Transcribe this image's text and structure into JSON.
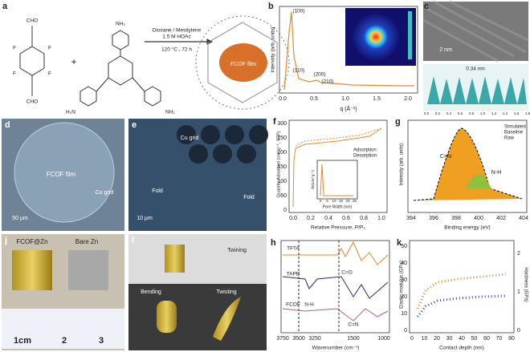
{
  "panels": {
    "a": {
      "label": "a",
      "groups": [
        "CHO",
        "CHO",
        "F",
        "F",
        "F",
        "F",
        "NH₂",
        "H₂N",
        "NH₂"
      ],
      "conditions": [
        "Dioxane / Mesitylene",
        "1.5 M HOAc",
        "120 °C , 72 h"
      ],
      "product": "FCOF film",
      "plus": "+"
    },
    "b": {
      "label": "b",
      "peaks": [
        "(100)",
        "(110)",
        "(200)",
        "(210)"
      ],
      "ylabel": "Intensity (arb. units)",
      "xlabel": "q (Å⁻¹)",
      "xticks": [
        "0.0",
        "0.5",
        "1.0",
        "1.5",
        "2.0"
      ]
    },
    "c": {
      "label": "c",
      "scale": "2 nm",
      "spacing": "0.34 nm",
      "xticks": [
        "0.0",
        "0.2",
        "0.4",
        "0.6",
        "0.8",
        "1.0",
        "1.2",
        "1.4",
        "1.6",
        "1.8"
      ]
    },
    "d": {
      "label": "d",
      "texts": [
        "FCOF film",
        "Cu grid"
      ],
      "scale": "50 µm"
    },
    "e": {
      "label": "e",
      "texts": [
        "Cu grid",
        "Fold",
        "Fold"
      ],
      "scale": "10 µm"
    },
    "f": {
      "label": "f",
      "ylabel": "Quantity Adsorbed (cm³ g⁻¹, STP)",
      "xlabel": "Relative Pressure, P/P₀",
      "yticks": [
        "0",
        "50",
        "100",
        "150",
        "200",
        "250",
        "300"
      ],
      "xticks": [
        "0.0",
        "0.2",
        "0.4",
        "0.6",
        "0.8",
        "1.0"
      ],
      "legend": [
        "Adsorption",
        "Desorption"
      ],
      "inset_ylabel": "dV(cm³ g⁻¹)",
      "inset_xlabel": "Pore Width (nm)",
      "inset_xticks": [
        "0",
        "5",
        "10",
        "15",
        "20",
        "25"
      ]
    },
    "g": {
      "label": "g",
      "legend": [
        "Simulated",
        "Baseline",
        "Raw"
      ],
      "peaks": [
        "C=N",
        "N-H"
      ],
      "ylabel": "Intensity (arb. units)",
      "xlabel": "Binding energy (eV)",
      "xticks": [
        "394",
        "396",
        "398",
        "400",
        "402",
        "404"
      ]
    },
    "j": {
      "label": "j",
      "texts": [
        "FCOF@Zn",
        "Bare Zn"
      ],
      "ruler": [
        "1cm",
        "2",
        "3"
      ]
    },
    "l": {
      "label": "l",
      "texts": [
        "Twining",
        "Bending",
        "Twisting"
      ]
    },
    "h": {
      "label": "h",
      "traces": [
        "TFTA",
        "TAPB",
        "FCOF"
      ],
      "bands": [
        "N-H",
        "C=O",
        "C=N"
      ],
      "xlabel": "Wavenumber (cm⁻¹)",
      "xticks": [
        "3750",
        "3500",
        "3250",
        "1500",
        "1000"
      ]
    },
    "k": {
      "label": "k",
      "ylabel": "Elastic modulus (GPa)",
      "y2label": "Hardness (GPa)",
      "xlabel": "Contact depth (nm)",
      "yticks": [
        "0",
        "10",
        "20",
        "30",
        "40",
        "50"
      ],
      "y2ticks": [
        "0",
        "1",
        "2"
      ],
      "xticks": [
        "0",
        "10",
        "20",
        "30",
        "40",
        "50",
        "60",
        "70",
        "80"
      ]
    }
  }
}
